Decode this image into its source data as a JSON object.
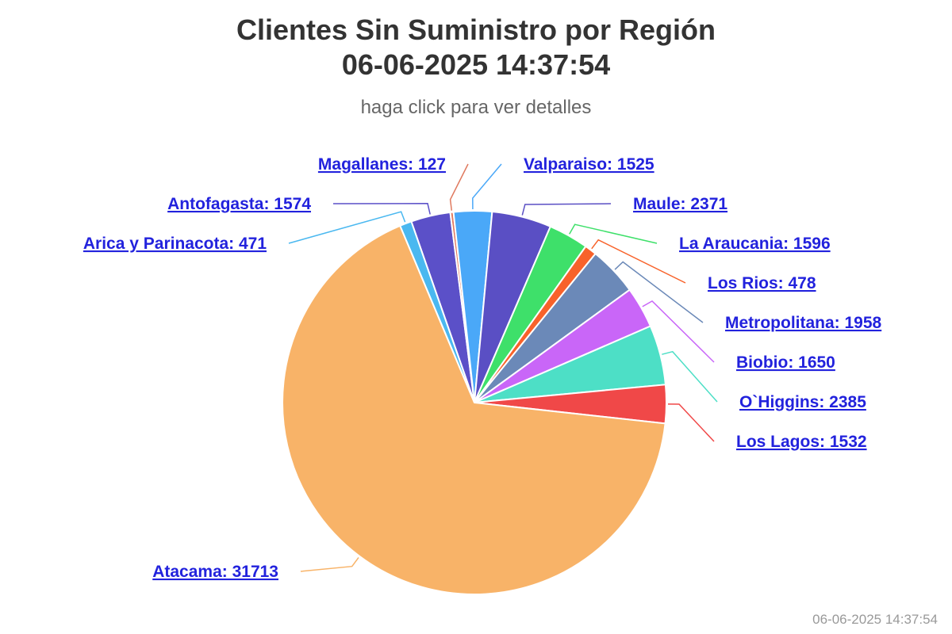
{
  "chart_data": {
    "type": "pie",
    "title_line1": "Clientes Sin Suministro por Región",
    "title_line2": "06-06-2025 14:37:54",
    "subtitle": "haga click para ver detalles",
    "slices": [
      {
        "name": "Antofagasta",
        "value": 1574,
        "color": "#5b50c8"
      },
      {
        "name": "Magallanes",
        "value": 127,
        "color": "#e07a5f"
      },
      {
        "name": "Valparaiso",
        "value": 1525,
        "color": "#4aa8f8"
      },
      {
        "name": "Maule",
        "value": 2371,
        "color": "#5a4fc4"
      },
      {
        "name": "La Araucania",
        "value": 1596,
        "color": "#3ee06a"
      },
      {
        "name": "Los Rios",
        "value": 478,
        "color": "#f8622a"
      },
      {
        "name": "Metropolitana",
        "value": 1958,
        "color": "#6b89b8"
      },
      {
        "name": "Biobio",
        "value": 1650,
        "color": "#c966f8"
      },
      {
        "name": "O`Higgins",
        "value": 2385,
        "color": "#4ddfc6"
      },
      {
        "name": "Los Lagos",
        "value": 1532,
        "color": "#f04848"
      },
      {
        "name": "Atacama",
        "value": 31713,
        "color": "#f8b368"
      },
      {
        "name": "Arica y Parinacota",
        "value": 471,
        "color": "#4ab8f0"
      }
    ]
  },
  "footer": {
    "timestamp": "06-06-2025 14:37:54"
  }
}
